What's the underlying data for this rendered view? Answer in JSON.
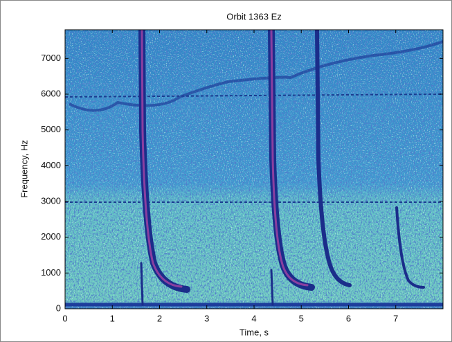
{
  "chart_data": {
    "type": "spectrogram",
    "title": "Orbit 1363 Ez",
    "x_label": "Time, s",
    "y_label": "Frequency, Hz",
    "xlim": [
      0,
      8
    ],
    "xticks": [
      0,
      1,
      2,
      3,
      4,
      5,
      6,
      7
    ],
    "ylim": [
      0,
      7800
    ],
    "yticks": [
      0,
      1000,
      2000,
      3000,
      4000,
      5000,
      6000,
      7000
    ]
  }
}
